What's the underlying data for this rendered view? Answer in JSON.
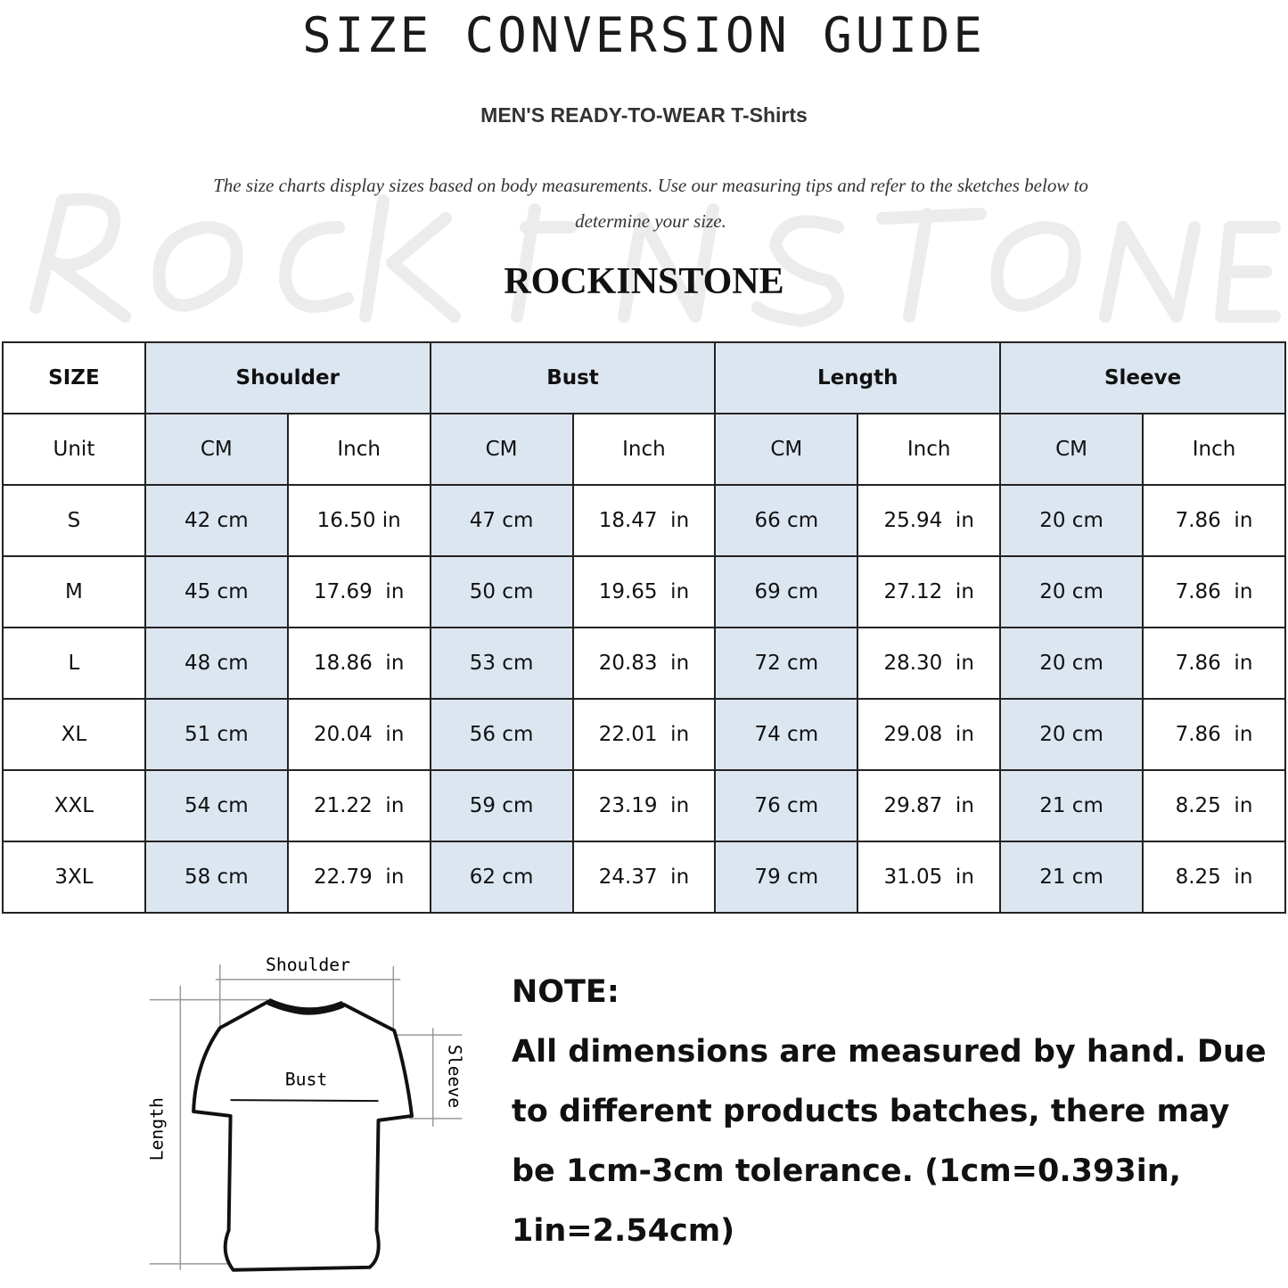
{
  "title": "SIZE CONVERSION GUIDE",
  "subtitle": "MEN'S READY-TO-WEAR T-Shirts",
  "description": "The size charts display sizes based on body measurements. Use our measuring tips and refer to the sketches below to determine your size.",
  "watermark": "ROCKINSTONE",
  "brand": "ROCKINSTONE",
  "colors": {
    "header_shade": "#dce6f1",
    "border": "#222222"
  },
  "table": {
    "size_header": "SIZE",
    "groups": [
      "Shoulder",
      "Bust",
      "Length",
      "Sleeve"
    ],
    "unit_label": "Unit",
    "units": [
      "CM",
      "Inch",
      "CM",
      "Inch",
      "CM",
      "Inch",
      "CM",
      "Inch"
    ],
    "rows": [
      {
        "size": "S",
        "values": [
          "42 cm",
          "16.50 in",
          "47 cm",
          "18.47  in",
          "66 cm",
          "25.94  in",
          "20 cm",
          "7.86  in"
        ]
      },
      {
        "size": "M",
        "values": [
          "45 cm",
          "17.69  in",
          "50 cm",
          "19.65  in",
          "69 cm",
          "27.12  in",
          "20 cm",
          "7.86  in"
        ]
      },
      {
        "size": "L",
        "values": [
          "48 cm",
          "18.86  in",
          "53 cm",
          "20.83  in",
          "72 cm",
          "28.30  in",
          "20 cm",
          "7.86  in"
        ]
      },
      {
        "size": "XL",
        "values": [
          "51 cm",
          "20.04  in",
          "56 cm",
          "22.01  in",
          "74 cm",
          "29.08  in",
          "20 cm",
          "7.86  in"
        ]
      },
      {
        "size": "XXL",
        "values": [
          "54 cm",
          "21.22  in",
          "59 cm",
          "23.19  in",
          "76 cm",
          "29.87  in",
          "21 cm",
          "8.25  in"
        ]
      },
      {
        "size": "3XL",
        "values": [
          "58 cm",
          "22.79  in",
          "62 cm",
          "24.37  in",
          "79 cm",
          "31.05  in",
          "21 cm",
          "8.25  in"
        ]
      }
    ]
  },
  "sketch": {
    "shoulder": "Shoulder",
    "bust": "Bust",
    "sleeve": "Sleeve",
    "length": "Length"
  },
  "note": {
    "heading": "NOTE:",
    "body": "All dimensions are measured by hand. Due to different products batches, there may be 1cm-3cm tolerance. (1cm=0.393in, 1in=2.54cm)"
  }
}
